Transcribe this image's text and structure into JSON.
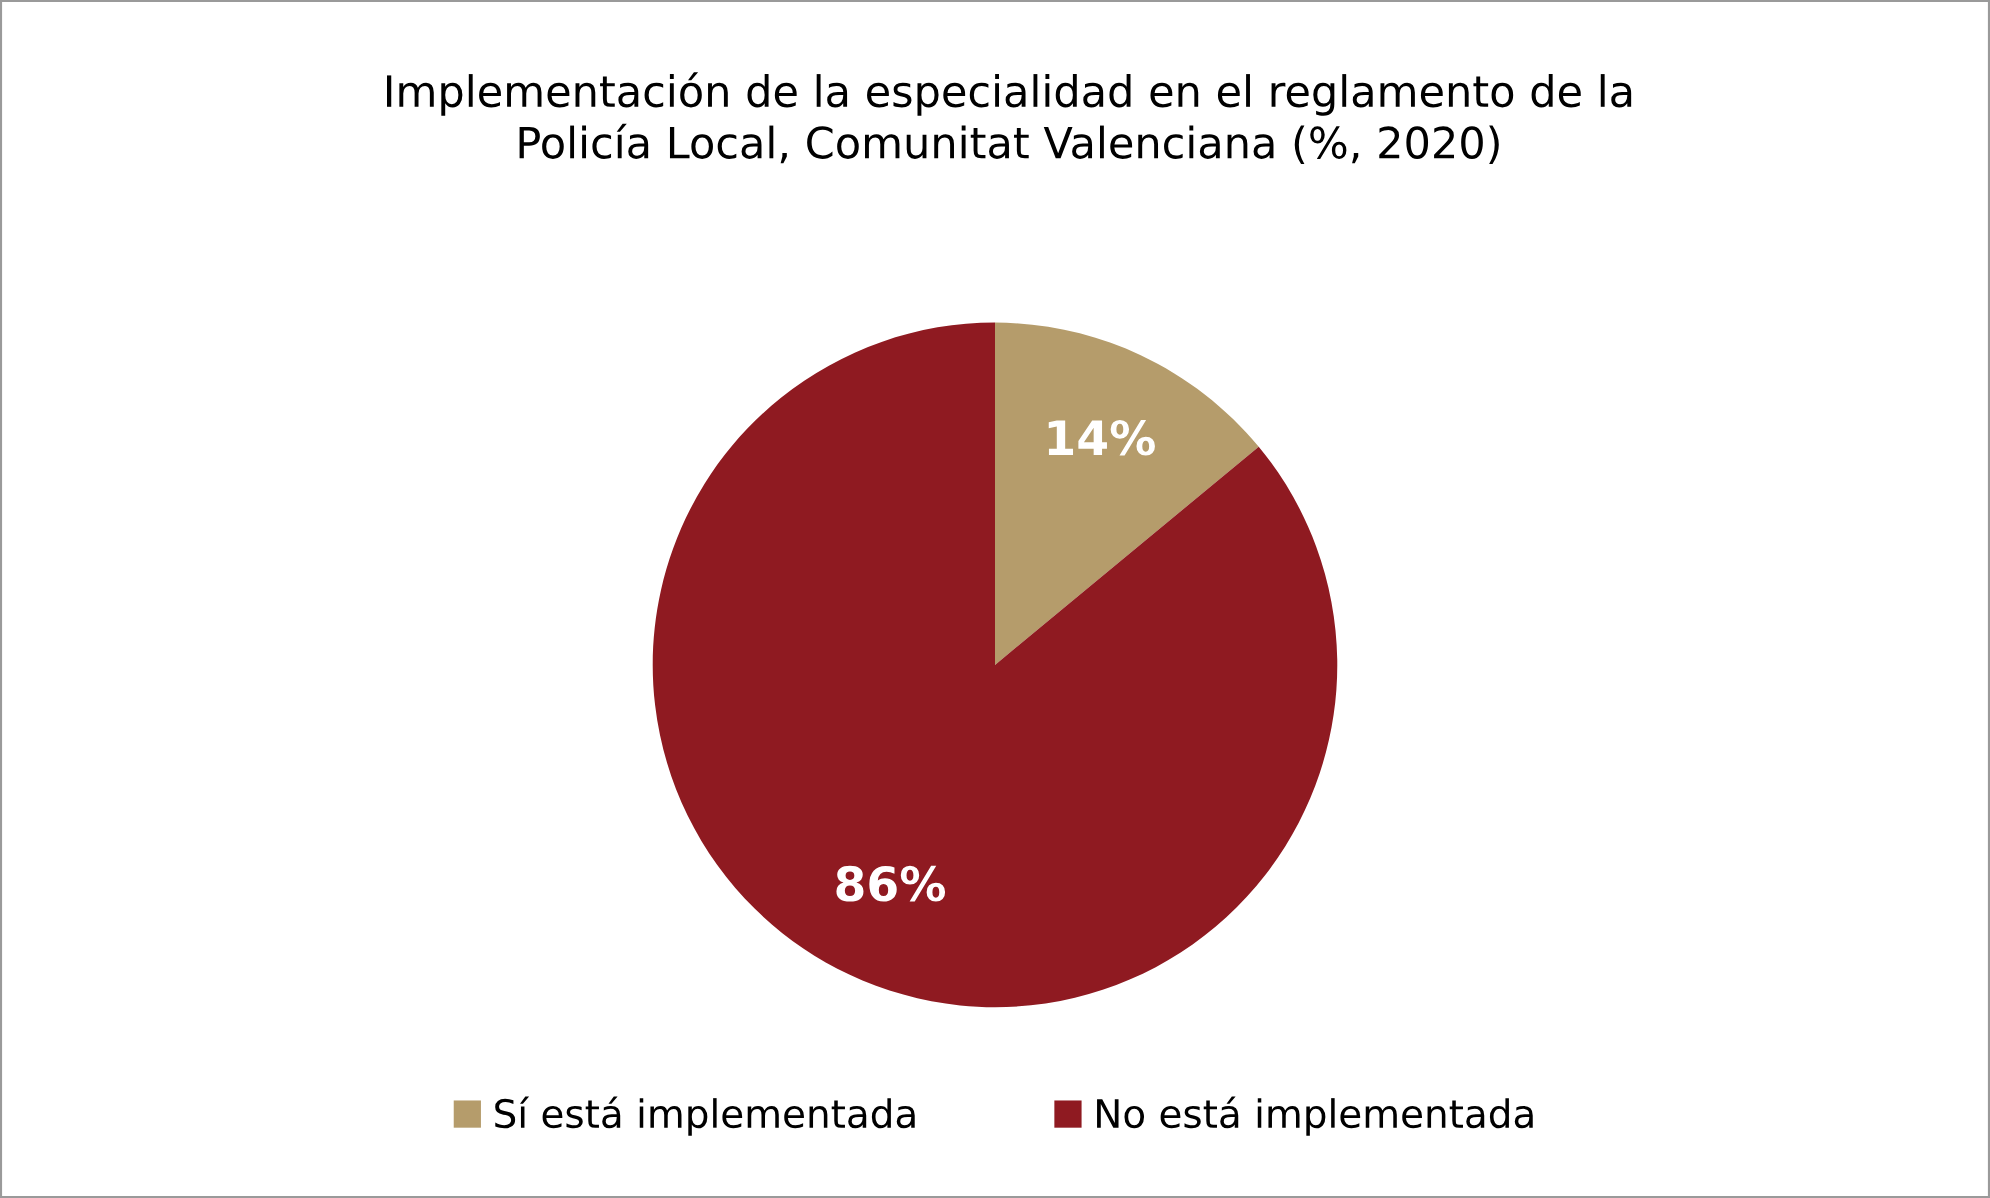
{
  "chart_data": {
    "type": "pie",
    "title": "Implementación de la especialidad en el reglamento de la\nPolicía Local, Comunitat Valenciana (%, 2020)",
    "categories": [
      "Sí está implementada",
      "No está implementada"
    ],
    "values": [
      14,
      86
    ],
    "colors": [
      "#b59c6b",
      "#8f1a21"
    ],
    "value_labels": [
      "14%",
      "86%"
    ],
    "legend": "bottom"
  }
}
